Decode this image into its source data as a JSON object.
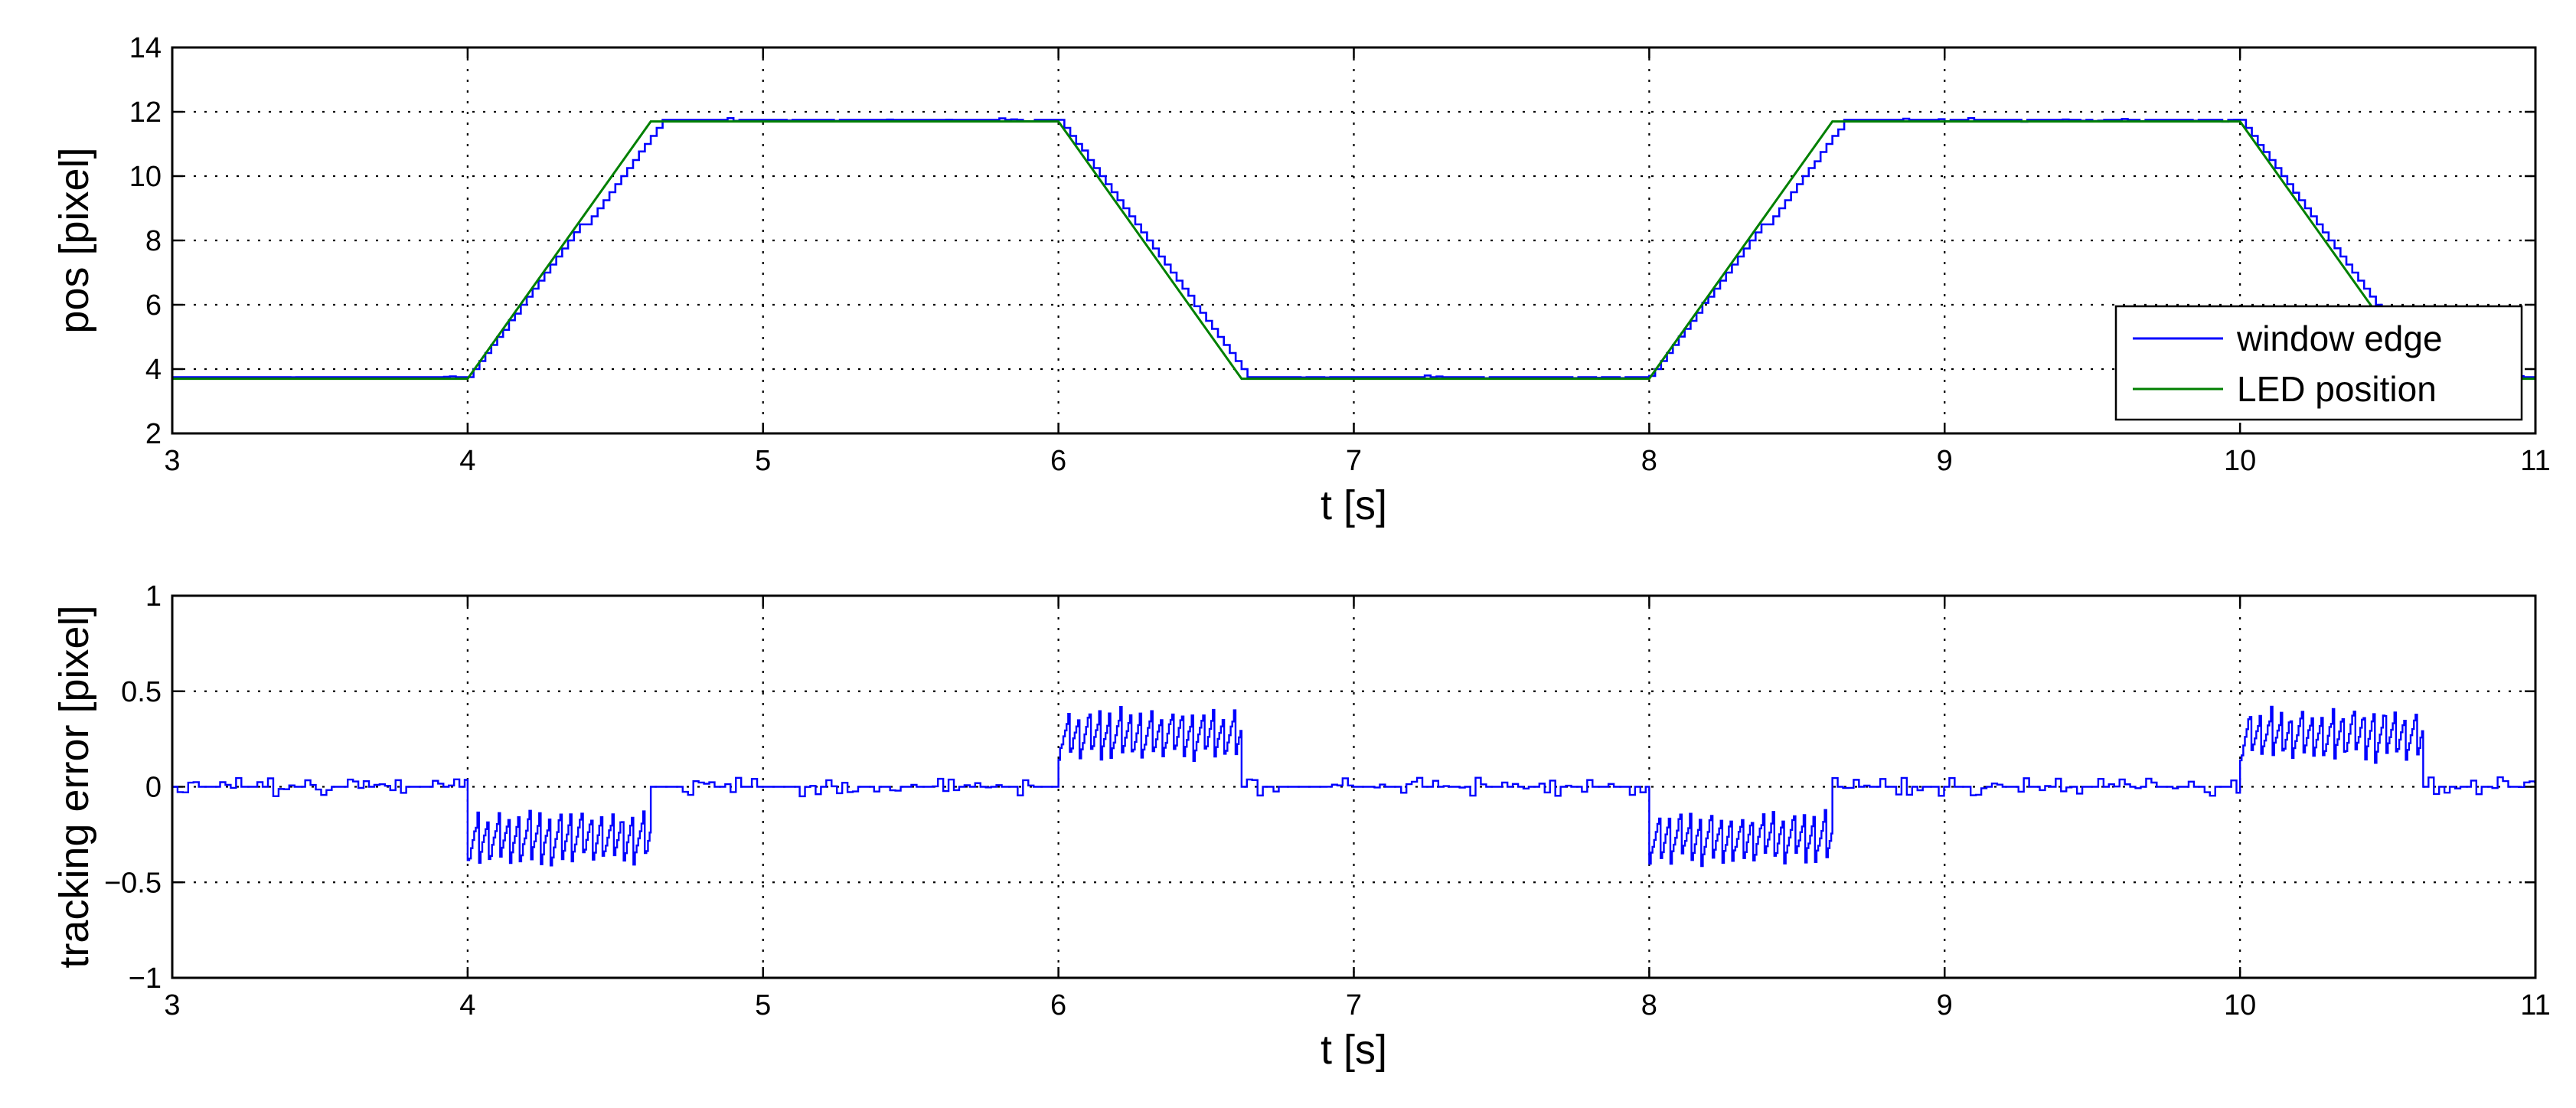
{
  "chart_data": [
    {
      "type": "line",
      "title": "",
      "xlabel": "t [s]",
      "ylabel": "pos [pixel]",
      "xlim": [
        3,
        11
      ],
      "ylim": [
        2,
        14
      ],
      "xticks": [
        3,
        4,
        5,
        6,
        7,
        8,
        9,
        10,
        11
      ],
      "yticks": [
        2,
        4,
        6,
        8,
        10,
        12,
        14
      ],
      "grid": true,
      "legend": "bottom-right",
      "series": [
        {
          "name": "window edge",
          "color": "#0000ff",
          "style": "staircase",
          "x": [
            3.0,
            4.0,
            4.65,
            6.0,
            6.65,
            8.0,
            8.65,
            10.0,
            10.65,
            11.0
          ],
          "y": [
            3.7,
            3.7,
            11.7,
            11.7,
            3.7,
            3.7,
            11.7,
            11.7,
            3.7,
            3.7
          ]
        },
        {
          "name": "LED position",
          "color": "#008000",
          "style": "line",
          "x": [
            3.0,
            4.0,
            4.62,
            6.0,
            6.62,
            8.0,
            8.62,
            10.0,
            10.62,
            11.0
          ],
          "y": [
            3.7,
            3.7,
            11.7,
            11.7,
            3.7,
            3.7,
            11.7,
            11.7,
            3.7,
            3.7
          ]
        }
      ]
    },
    {
      "type": "line",
      "title": "",
      "xlabel": "t [s]",
      "ylabel": "tracking error [pixel]",
      "xlim": [
        3,
        11
      ],
      "ylim": [
        -1,
        1
      ],
      "xticks": [
        3,
        4,
        5,
        6,
        7,
        8,
        9,
        10,
        11
      ],
      "yticks": [
        -1,
        -0.5,
        0,
        0.5,
        1
      ],
      "grid": true,
      "series": [
        {
          "color": "#0000ff",
          "style": "noisy-step",
          "segments": [
            {
              "x0": 3.0,
              "x1": 4.0,
              "mean": 0.0,
              "amp": 0.05
            },
            {
              "x0": 4.0,
              "x1": 4.62,
              "mean": -0.27,
              "amp": 0.16
            },
            {
              "x0": 4.62,
              "x1": 6.0,
              "mean": 0.0,
              "amp": 0.05
            },
            {
              "x0": 6.0,
              "x1": 6.62,
              "mean": 0.27,
              "amp": 0.16
            },
            {
              "x0": 6.62,
              "x1": 8.0,
              "mean": 0.0,
              "amp": 0.05
            },
            {
              "x0": 8.0,
              "x1": 8.62,
              "mean": -0.27,
              "amp": 0.16
            },
            {
              "x0": 8.62,
              "x1": 10.0,
              "mean": 0.0,
              "amp": 0.05
            },
            {
              "x0": 10.0,
              "x1": 10.62,
              "mean": 0.27,
              "amp": 0.16
            },
            {
              "x0": 10.62,
              "x1": 11.0,
              "mean": 0.0,
              "amp": 0.05
            }
          ]
        }
      ]
    }
  ]
}
